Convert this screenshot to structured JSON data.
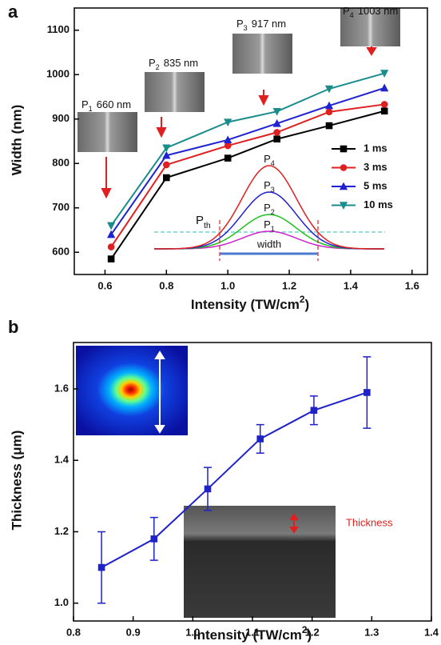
{
  "chart_data": [
    {
      "type": "line",
      "panel": "a",
      "x_label": {
        "text": "Intensity (TW/cm",
        "sup": "2",
        "end": ")"
      },
      "y_label": "Width (nm)",
      "x": [
        0.62,
        0.8,
        1.0,
        1.16,
        1.33,
        1.51
      ],
      "xlim": [
        0.5,
        1.65
      ],
      "ylim": [
        550,
        1150
      ],
      "xticks": [
        0.6,
        0.8,
        {
          "value": 1,
          "label": "1.0"
        },
        1.2,
        1.4,
        1.6
      ],
      "yticks": [
        600,
        700,
        800,
        900,
        1000,
        1100
      ],
      "legend": "right",
      "series": [
        {
          "name": "1  ms",
          "color": "#000000",
          "marker": "square",
          "values": [
            585,
            768,
            812,
            855,
            885,
            918
          ]
        },
        {
          "name": "3  ms",
          "color": "#e02020",
          "marker": "circle",
          "values": [
            612,
            797,
            840,
            870,
            916,
            933
          ]
        },
        {
          "name": "5  ms",
          "color": "#1f22d0",
          "marker": "triangle-up",
          "values": [
            640,
            818,
            853,
            890,
            930,
            970
          ]
        },
        {
          "name": "10 ms",
          "color": "#1a8c8c",
          "marker": "triangle-down",
          "values": [
            660,
            835,
            893,
            917,
            968,
            1003
          ]
        }
      ],
      "annotations": [
        {
          "label": "P",
          "sub": "1",
          "text": "660 nm"
        },
        {
          "label": "P",
          "sub": "2",
          "text": "835 nm"
        },
        {
          "label": "P",
          "sub": "3",
          "text": "917 nm"
        },
        {
          "label": "P",
          "sub": "4",
          "text": "1003 nm"
        }
      ],
      "inset": {
        "threshold": {
          "label": "P",
          "sub": "th"
        },
        "peaks": [
          {
            "label": "P",
            "sub": "1"
          },
          {
            "label": "P",
            "sub": "2"
          },
          {
            "label": "P",
            "sub": "3"
          },
          {
            "label": "P",
            "sub": "4"
          }
        ],
        "width_label": "width"
      }
    },
    {
      "type": "line",
      "panel": "b",
      "x_label": {
        "text": "Intensity (TW/cm",
        "sup": "2",
        "end": ")"
      },
      "y_label": "Thickness (μm)",
      "x": [
        0.847,
        0.935,
        1.025,
        1.113,
        1.203,
        1.292
      ],
      "xlim": [
        0.8,
        1.4
      ],
      "ylim": [
        0.95,
        1.73
      ],
      "xticks": [
        0.8,
        0.9,
        {
          "value": 1,
          "label": "1.0"
        },
        1.1,
        1.2,
        1.3,
        1.4
      ],
      "yticks": [
        {
          "value": 1,
          "label": "1.0"
        },
        1.2,
        1.4,
        1.6
      ],
      "series": [
        {
          "color": "#1f22c8",
          "marker": "square",
          "values": [
            1.1,
            1.18,
            1.32,
            1.46,
            1.54,
            1.59
          ],
          "errors": [
            0.1,
            0.06,
            0.06,
            0.04,
            0.04,
            0.1
          ]
        }
      ],
      "annotations": [
        {
          "text": "Thickness",
          "color": "#e02020"
        }
      ]
    }
  ]
}
